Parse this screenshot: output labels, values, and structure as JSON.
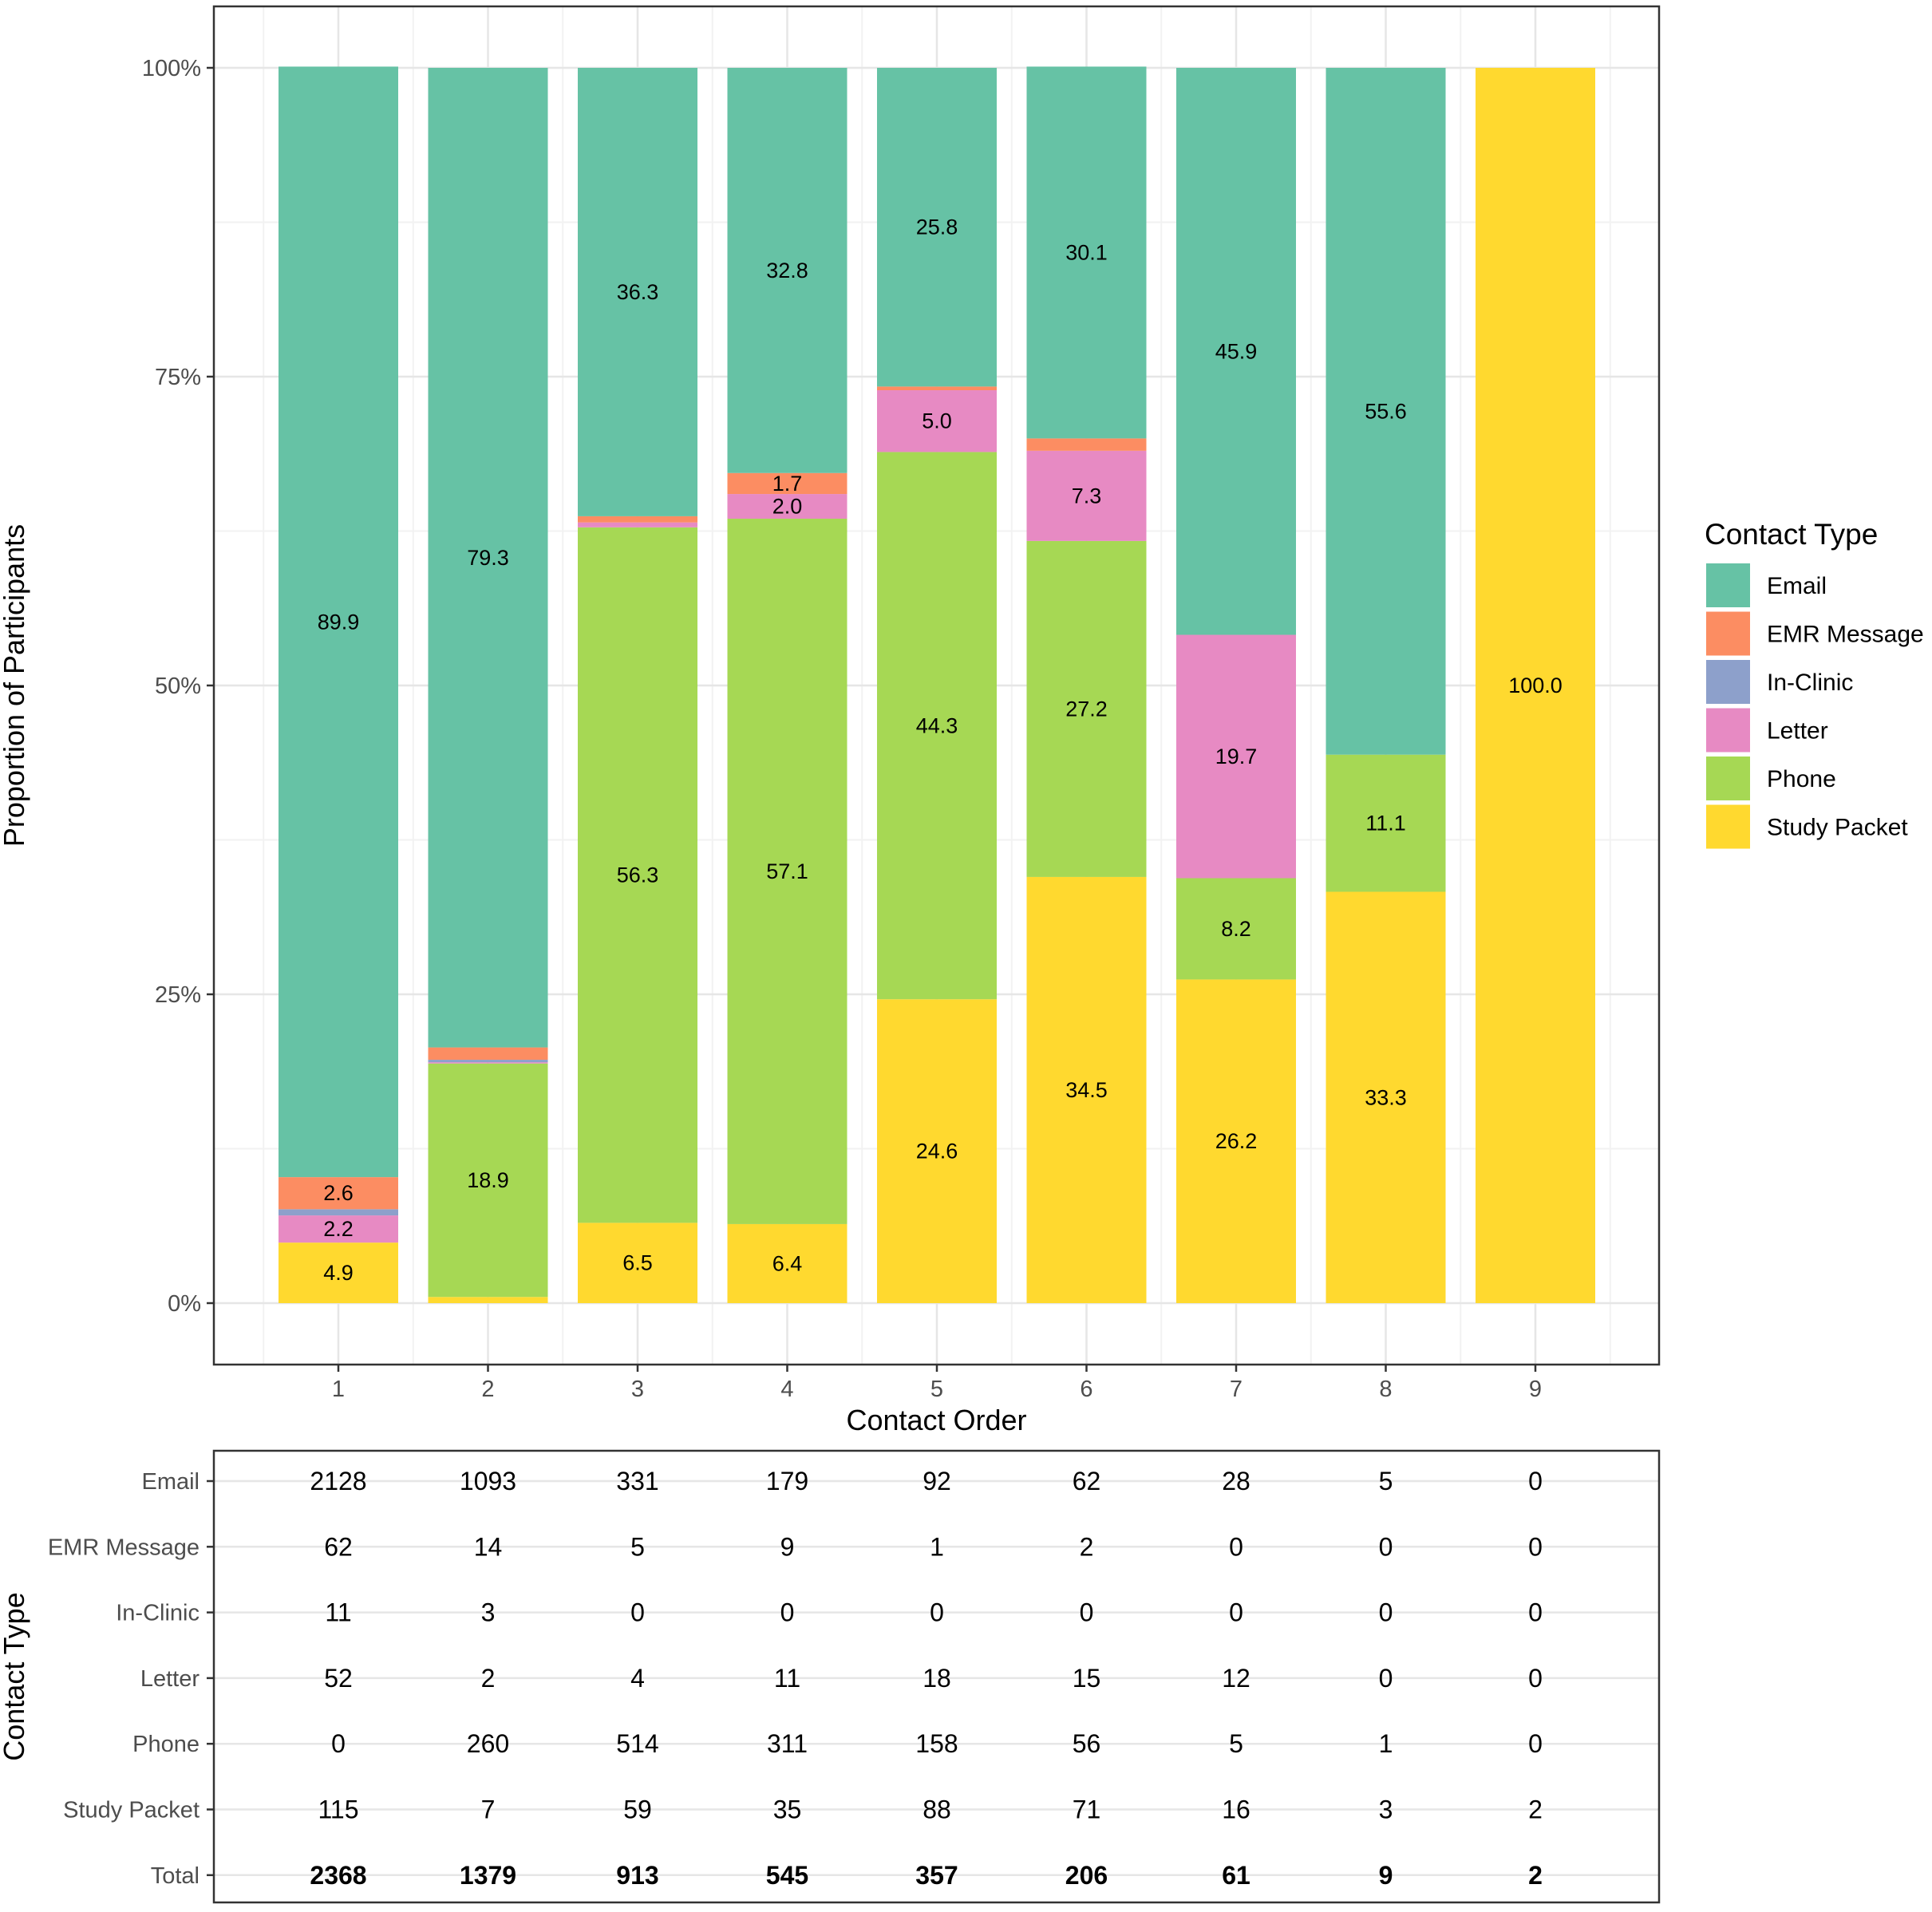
{
  "chart_data": [
    {
      "type": "bar",
      "stacked": true,
      "xlabel": "Contact Order",
      "ylabel": "Proportion of Participants",
      "ylim": [
        0,
        100
      ],
      "yticks": [
        "0%",
        "25%",
        "50%",
        "75%",
        "100%"
      ],
      "categories": [
        "1",
        "2",
        "3",
        "4",
        "5",
        "6",
        "7",
        "8",
        "9"
      ],
      "legend_title": "Contact Type",
      "legend_position": "right",
      "grid": true,
      "series": [
        {
          "name": "Study Packet",
          "color": "#FFD92F",
          "values": [
            4.9,
            0.5,
            6.5,
            6.4,
            24.6,
            34.5,
            26.2,
            33.3,
            100.0
          ]
        },
        {
          "name": "Phone",
          "color": "#A6D854",
          "values": [
            0.0,
            18.9,
            56.3,
            57.1,
            44.3,
            27.2,
            8.2,
            11.1,
            0.0
          ]
        },
        {
          "name": "Letter",
          "color": "#E78AC3",
          "values": [
            2.2,
            0.1,
            0.4,
            2.0,
            5.0,
            7.3,
            19.7,
            0.0,
            0.0
          ]
        },
        {
          "name": "In-Clinic",
          "color": "#8DA0CB",
          "values": [
            0.5,
            0.2,
            0.0,
            0.0,
            0.0,
            0.0,
            0.0,
            0.0,
            0.0
          ]
        },
        {
          "name": "EMR Message",
          "color": "#FC8D62",
          "values": [
            2.6,
            1.0,
            0.5,
            1.7,
            0.3,
            1.0,
            0.0,
            0.0,
            0.0
          ]
        },
        {
          "name": "Email",
          "color": "#66C2A5",
          "values": [
            89.9,
            79.3,
            36.3,
            32.8,
            25.8,
            30.1,
            45.9,
            55.6,
            0.0
          ]
        }
      ],
      "data_labels": [
        {
          "bar": 0,
          "series": "Email",
          "text": "89.9"
        },
        {
          "bar": 0,
          "series": "EMR Message",
          "text": "2.6"
        },
        {
          "bar": 0,
          "series": "Letter",
          "text": "2.2"
        },
        {
          "bar": 0,
          "series": "Study Packet",
          "text": "4.9"
        },
        {
          "bar": 1,
          "series": "Email",
          "text": "79.3"
        },
        {
          "bar": 1,
          "series": "Phone",
          "text": "18.9"
        },
        {
          "bar": 2,
          "series": "Email",
          "text": "36.3"
        },
        {
          "bar": 2,
          "series": "Phone",
          "text": "56.3"
        },
        {
          "bar": 2,
          "series": "Study Packet",
          "text": "6.5"
        },
        {
          "bar": 3,
          "series": "Email",
          "text": "32.8"
        },
        {
          "bar": 3,
          "series": "EMR Message",
          "text": "1.7"
        },
        {
          "bar": 3,
          "series": "Letter",
          "text": "2.0"
        },
        {
          "bar": 3,
          "series": "Phone",
          "text": "57.1"
        },
        {
          "bar": 3,
          "series": "Study Packet",
          "text": "6.4"
        },
        {
          "bar": 4,
          "series": "Email",
          "text": "25.8"
        },
        {
          "bar": 4,
          "series": "Letter",
          "text": "5.0"
        },
        {
          "bar": 4,
          "series": "Phone",
          "text": "44.3"
        },
        {
          "bar": 4,
          "series": "Study Packet",
          "text": "24.6"
        },
        {
          "bar": 5,
          "series": "Email",
          "text": "30.1"
        },
        {
          "bar": 5,
          "series": "Letter",
          "text": "7.3"
        },
        {
          "bar": 5,
          "series": "Phone",
          "text": "27.2"
        },
        {
          "bar": 5,
          "series": "Study Packet",
          "text": "34.5"
        },
        {
          "bar": 6,
          "series": "Email",
          "text": "45.9"
        },
        {
          "bar": 6,
          "series": "Letter",
          "text": "19.7"
        },
        {
          "bar": 6,
          "series": "Phone",
          "text": "8.2"
        },
        {
          "bar": 6,
          "series": "Study Packet",
          "text": "26.2"
        },
        {
          "bar": 7,
          "series": "Email",
          "text": "55.6"
        },
        {
          "bar": 7,
          "series": "Phone",
          "text": "11.1"
        },
        {
          "bar": 7,
          "series": "Study Packet",
          "text": "33.3"
        },
        {
          "bar": 8,
          "series": "Study Packet",
          "text": "100.0"
        }
      ]
    },
    {
      "type": "table",
      "ylabel": "Contact Type",
      "columns": [
        "1",
        "2",
        "3",
        "4",
        "5",
        "6",
        "7",
        "8",
        "9"
      ],
      "rows": [
        {
          "label": "Email",
          "values": [
            "2128",
            "1093",
            "331",
            "179",
            "92",
            "62",
            "28",
            "5",
            "0"
          ]
        },
        {
          "label": "EMR Message",
          "values": [
            "62",
            "14",
            "5",
            "9",
            "1",
            "2",
            "0",
            "0",
            "0"
          ]
        },
        {
          "label": "In-Clinic",
          "values": [
            "11",
            "3",
            "0",
            "0",
            "0",
            "0",
            "0",
            "0",
            "0"
          ]
        },
        {
          "label": "Letter",
          "values": [
            "52",
            "2",
            "4",
            "11",
            "18",
            "15",
            "12",
            "0",
            "0"
          ]
        },
        {
          "label": "Phone",
          "values": [
            "0",
            "260",
            "514",
            "311",
            "158",
            "56",
            "5",
            "1",
            "0"
          ]
        },
        {
          "label": "Study Packet",
          "values": [
            "115",
            "7",
            "59",
            "35",
            "88",
            "71",
            "16",
            "3",
            "2"
          ]
        },
        {
          "label": "Total",
          "values": [
            "2368",
            "1379",
            "913",
            "545",
            "357",
            "206",
            "61",
            "9",
            "2"
          ],
          "bold": true
        }
      ]
    }
  ],
  "legend": {
    "title": "Contact Type",
    "items": [
      {
        "label": "Email",
        "color": "#66C2A5"
      },
      {
        "label": "EMR Message",
        "color": "#FC8D62"
      },
      {
        "label": "In-Clinic",
        "color": "#8DA0CB"
      },
      {
        "label": "Letter",
        "color": "#E78AC3"
      },
      {
        "label": "Phone",
        "color": "#A6D854"
      },
      {
        "label": "Study Packet",
        "color": "#FFD92F"
      }
    ]
  }
}
